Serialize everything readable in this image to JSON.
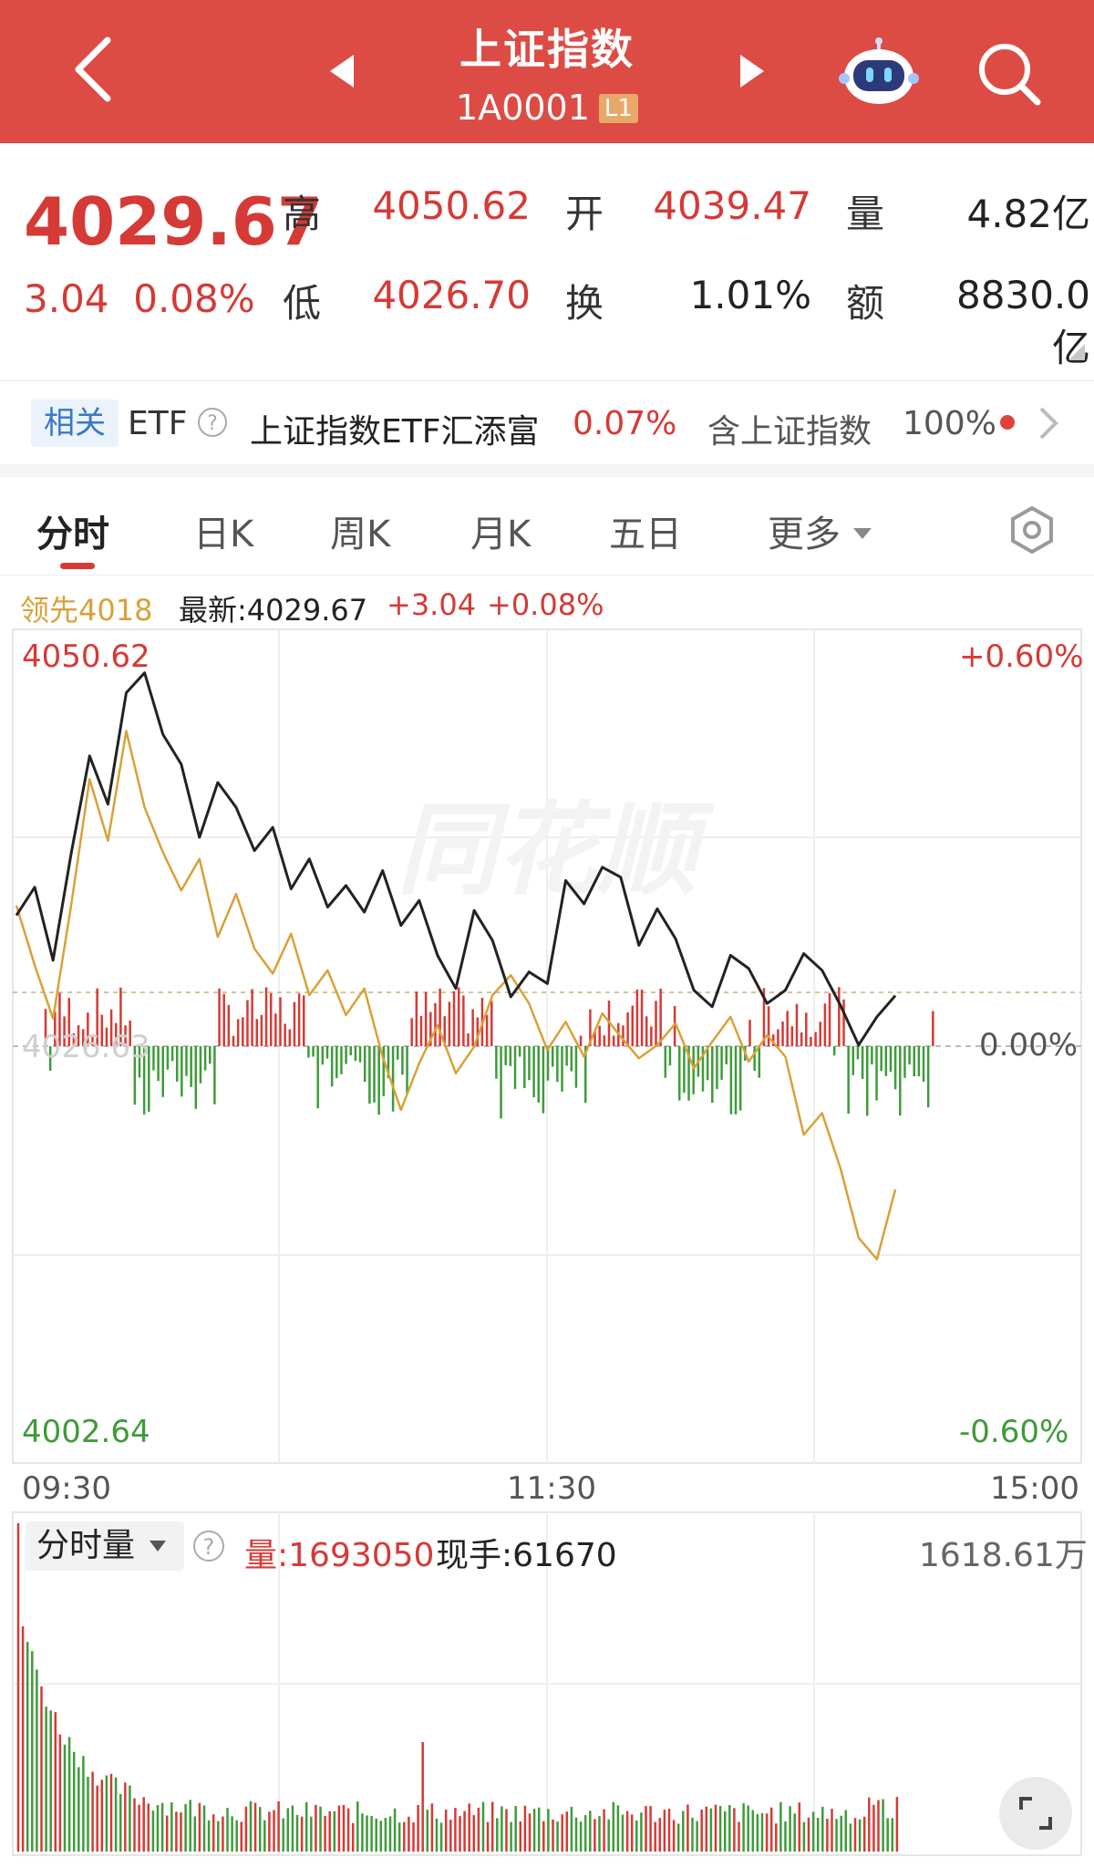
{
  "header": {
    "title": "上证指数",
    "code": "1A0001",
    "level_badge": "L1",
    "icons": [
      "back-icon",
      "prev-arrow-icon",
      "next-arrow-icon",
      "robot-assistant-icon",
      "search-icon"
    ],
    "bg_color": "#dd4b45"
  },
  "quote": {
    "price": "4029.67",
    "change": "3.04",
    "change_pct": "0.08%",
    "high_label": "高",
    "high": "4050.62",
    "open_label": "开",
    "open": "4039.47",
    "volume_label": "量",
    "volume": "4.82亿",
    "low_label": "低",
    "low": "4026.70",
    "turnover_label": "换",
    "turnover": "1.01%",
    "amount_label": "额",
    "amount": "8830.0亿"
  },
  "etf": {
    "tag": "相关",
    "etf_label": "ETF",
    "name": "上证指数ETF汇添富",
    "pct": "0.07%",
    "contains": "含上证指数",
    "weight": "100%"
  },
  "tabs": [
    {
      "label": "分时",
      "active": true
    },
    {
      "label": "日K"
    },
    {
      "label": "周K"
    },
    {
      "label": "月K"
    },
    {
      "label": "五日"
    },
    {
      "label": "更多"
    }
  ],
  "info_line": {
    "lead": "领先4018",
    "latest": "最新:4029.67",
    "chg": "+3.04",
    "pct": "+0.08%"
  },
  "chart_labels": {
    "y_top_left": "4050.62",
    "y_top_right": "+0.60%",
    "y_mid_left": "4026.63",
    "y_mid_right": "0.00%",
    "y_bot_left": "4002.64",
    "y_bot_right": "-0.60%",
    "x_start": "09:30",
    "x_mid": "11:30",
    "x_end": "15:00",
    "watermark": "同花顺"
  },
  "chart_data": {
    "type": "line",
    "x_range": [
      "09:30",
      "15:00"
    ],
    "ylim": [
      4002.64,
      4050.62
    ],
    "prev_close": 4026.63,
    "series": [
      {
        "name": "最新",
        "color": "#222222",
        "values": [
          4034.5,
          4036.2,
          4031.8,
          4038.3,
          4044.1,
          4041.2,
          4047.9,
          4049.1,
          4045.4,
          4043.6,
          4039.2,
          4042.5,
          4041.0,
          4038.4,
          4039.8,
          4036.1,
          4037.9,
          4035.0,
          4036.3,
          4034.7,
          4037.2,
          4033.9,
          4035.4,
          4032.1,
          4030.1,
          4034.8,
          4033.0,
          4029.6,
          4031.1,
          4030.4,
          4036.6,
          4035.2,
          4037.4,
          4036.8,
          4032.7,
          4034.9,
          4033.1,
          4030.0,
          4029.0,
          4032.1,
          4031.3,
          4029.2,
          4030.0,
          4032.2,
          4031.2,
          4029.1,
          4026.7,
          4028.4,
          4029.67
        ]
      },
      {
        "name": "领先",
        "color": "#d9a139",
        "values": [
          4035.1,
          4031.5,
          4028.3,
          4035.2,
          4042.7,
          4039.0,
          4045.6,
          4041.0,
          4038.3,
          4036.0,
          4037.9,
          4033.2,
          4035.8,
          4032.5,
          4031.0,
          4033.4,
          4029.7,
          4031.2,
          4028.5,
          4030.1,
          4026.0,
          4022.8,
          4025.6,
          4027.9,
          4025.0,
          4026.6,
          4029.7,
          4030.9,
          4029.2,
          4026.4,
          4028.1,
          4026.0,
          4028.6,
          4027.2,
          4025.9,
          4026.7,
          4028.0,
          4025.3,
          4026.9,
          4028.4,
          4025.7,
          4027.3,
          4026.0,
          4021.3,
          4022.6,
          4019.3,
          4015.1,
          4013.8,
          4018.0
        ]
      }
    ]
  },
  "volume": {
    "selector": "分时量",
    "vol_label": "量:1693050",
    "hand_label": "现手:61670",
    "max": "1618.61万"
  },
  "colors": {
    "up": "#d53a36",
    "down": "#3e9b3a",
    "lead_line": "#d9a139"
  }
}
